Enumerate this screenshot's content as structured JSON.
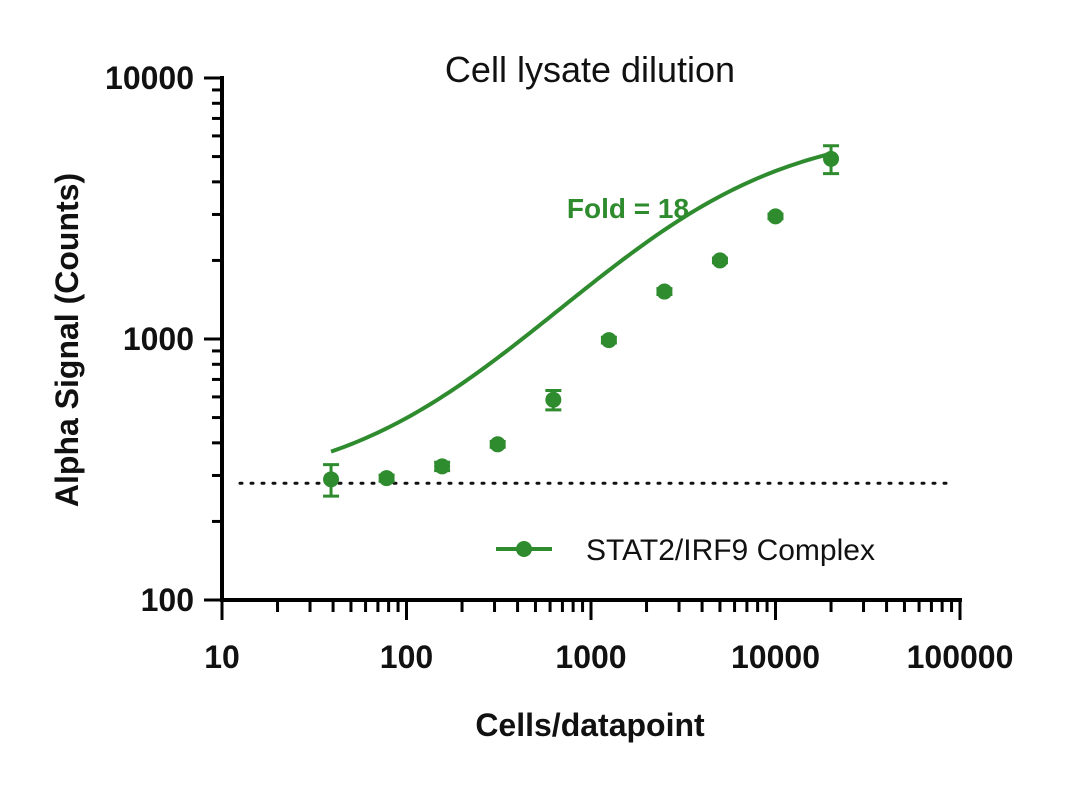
{
  "chart_data": {
    "type": "scatter",
    "title": "Cell lysate dilution",
    "xlabel": "Cells/datapoint",
    "ylabel": "Alpha Signal (Counts)",
    "xscale": "log",
    "yscale": "log",
    "xlim": [
      10,
      100000
    ],
    "ylim": [
      100,
      10000
    ],
    "x_ticks": [
      10,
      100,
      1000,
      10000,
      100000
    ],
    "x_tick_labels": [
      "10",
      "100",
      "1000",
      "10000",
      "100000"
    ],
    "y_ticks": [
      100,
      1000,
      10000
    ],
    "y_tick_labels": [
      "100",
      "1000",
      "10000"
    ],
    "grid": false,
    "legend_position": "bottom-right",
    "color": "#2e8b2e",
    "annotation": "Fold = 18",
    "baseline": 280,
    "series": [
      {
        "name": "STAT2/IRF9 Complex",
        "x": [
          39,
          78,
          156,
          312,
          625,
          1250,
          2500,
          5000,
          10000,
          20000
        ],
        "y": [
          290,
          293,
          325,
          395,
          585,
          990,
          1520,
          2000,
          2950,
          4900
        ],
        "y_err": [
          40,
          8,
          12,
          10,
          50,
          25,
          40,
          40,
          60,
          600
        ]
      }
    ],
    "fit_curve": {
      "type": "4PL",
      "bottom": 262,
      "top": 6500,
      "ec50": 4500,
      "hill": 0.85,
      "x_range": [
        39,
        20000
      ]
    }
  }
}
